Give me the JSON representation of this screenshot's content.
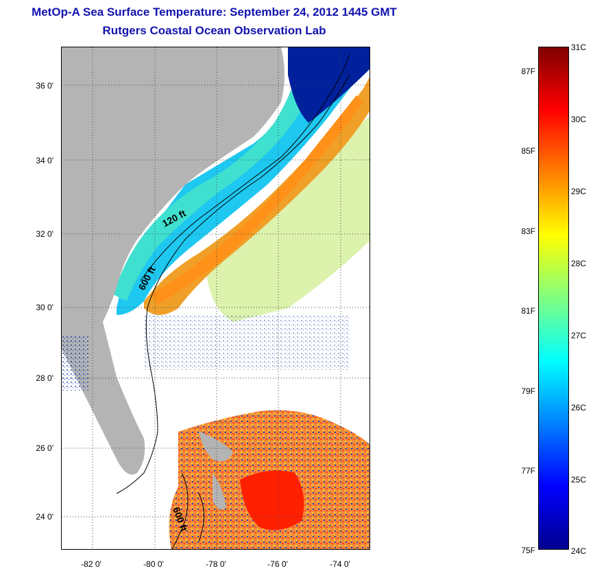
{
  "title": {
    "line1": "MetOp-A Sea Surface Temperature:  September 24, 2012 1445 GMT",
    "line2": "Rutgers Coastal Ocean Observation Lab"
  },
  "map": {
    "latitude_labels": [
      "36 0'",
      "34 0'",
      "32 0'",
      "30 0'",
      "28 0'",
      "26 0'",
      "24 0'"
    ],
    "longitude_labels": [
      "-82 0'",
      "-80 0'",
      "-78 0'",
      "-76 0'",
      "-74 0'"
    ],
    "contour_labels": [
      "120 ft",
      "600 ft",
      "600 ft"
    ],
    "colors": {
      "land": "#b4b4b4",
      "no_data": "#ffffff",
      "coastal_water": "#1ec8f0",
      "gulf_stream": "#f0a028",
      "warm_water": "#ff3c00",
      "cold_water": "#00209c"
    }
  },
  "colorbar": {
    "celsius_labels": [
      "31C",
      "30C",
      "29C",
      "28C",
      "27C",
      "26C",
      "25C",
      "24C"
    ],
    "fahrenheit_labels": [
      "87F",
      "85F",
      "83F",
      "81F",
      "79F",
      "77F",
      "75F"
    ],
    "range_celsius": [
      24,
      31
    ],
    "colormap": "jet"
  }
}
